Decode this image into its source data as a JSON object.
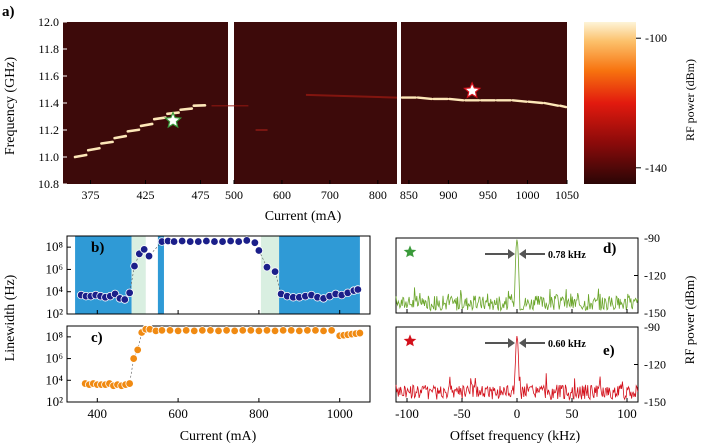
{
  "panel_labels": {
    "a": "a)",
    "b": "b)",
    "c": "c)",
    "d": "d)",
    "e": "e)"
  },
  "annotations": {
    "d_linewidth": "0.78 kHz",
    "e_linewidth": "0.60 kHz"
  },
  "colors": {
    "heatmap_bg": "#3d0a0a",
    "blue_region": "#2f9ad6",
    "green_region": "#d9efe1",
    "blue_points": "#1b1f8a",
    "orange_points": "#f08a12",
    "green_trace": "#6aa52a",
    "red_trace": "#d3101b",
    "star_green": "#3a9a3a",
    "star_red": "#d3101b"
  },
  "chart_data": [
    {
      "id": "a",
      "type": "heatmap",
      "title": "",
      "xlabel": "Current (mA)",
      "ylabel": "Frequency (GHz)",
      "ylim": [
        10.8,
        12.0
      ],
      "yticks": [
        "10.8",
        "11.0",
        "11.2",
        "11.4",
        "11.6",
        "11.8",
        "12.0"
      ],
      "segments": [
        {
          "xlim": [
            350,
            500
          ],
          "xticks": [
            "375",
            "425",
            "475"
          ]
        },
        {
          "xlim": [
            500,
            840
          ],
          "xticks": [
            "500",
            "600",
            "700",
            "800"
          ]
        },
        {
          "xlim": [
            840,
            1050
          ],
          "xticks": [
            "850",
            "900",
            "950",
            "1000",
            "1050"
          ]
        }
      ],
      "colorbar": {
        "label": "RF power (dBm)",
        "ticks": [
          "-100",
          "-140"
        ],
        "range": [
          -145,
          -95
        ]
      },
      "trace1": {
        "x": [
          360,
          372,
          384,
          396,
          408,
          420,
          432,
          444,
          456,
          468,
          480
        ],
        "y": [
          11.0,
          11.05,
          11.1,
          11.14,
          11.19,
          11.23,
          11.28,
          11.32,
          11.35,
          11.38,
          11.39
        ]
      },
      "trace2": {
        "x": [
          840,
          860,
          880,
          900,
          920,
          940,
          960,
          980,
          1000,
          1020,
          1040,
          1050
        ],
        "y": [
          11.44,
          11.44,
          11.43,
          11.43,
          11.42,
          11.42,
          11.42,
          11.42,
          11.41,
          11.4,
          11.38,
          11.37
        ]
      },
      "stars": [
        {
          "x": 450,
          "y": 11.27,
          "color": "green"
        },
        {
          "x": 930,
          "y": 11.49,
          "color": "red"
        }
      ]
    },
    {
      "id": "b",
      "type": "scatter",
      "xlabel": "",
      "ylabel": "Linewidth (Hz)",
      "xlim": [
        325,
        1075
      ],
      "ylim_log10": [
        2,
        9
      ],
      "yticks": [
        "10²",
        "10⁴",
        "10⁶",
        "10⁸"
      ],
      "regions": [
        {
          "x0": 345,
          "x1": 485,
          "color": "blue"
        },
        {
          "x0": 485,
          "x1": 520,
          "color": "green"
        },
        {
          "x0": 550,
          "x1": 565,
          "color": "blue"
        },
        {
          "x0": 805,
          "x1": 850,
          "color": "green"
        },
        {
          "x0": 850,
          "x1": 1050,
          "color": "blue"
        }
      ],
      "x": [
        360,
        372,
        384,
        396,
        408,
        420,
        432,
        444,
        456,
        468,
        480,
        492,
        504,
        516,
        528,
        560,
        575,
        590,
        610,
        630,
        650,
        670,
        690,
        710,
        730,
        750,
        770,
        790,
        800,
        820,
        840,
        855,
        870,
        885,
        900,
        915,
        930,
        945,
        960,
        975,
        990,
        1005,
        1020,
        1035,
        1045
      ],
      "y_log10": [
        3.7,
        3.6,
        3.6,
        3.7,
        3.6,
        3.5,
        3.6,
        3.8,
        3.4,
        3.3,
        3.9,
        6.3,
        7.4,
        7.8,
        7.2,
        8.5,
        8.55,
        8.5,
        8.55,
        8.5,
        8.5,
        8.55,
        8.5,
        8.5,
        8.55,
        8.5,
        8.6,
        8.4,
        7.7,
        6.2,
        5.8,
        3.8,
        3.6,
        3.5,
        3.5,
        3.6,
        3.7,
        3.5,
        3.4,
        3.6,
        3.8,
        3.7,
        3.9,
        4.1,
        4.2
      ]
    },
    {
      "id": "c",
      "type": "scatter",
      "xlabel": "Current (mA)",
      "ylabel": "Linewidth (Hz)",
      "xlim": [
        325,
        1075
      ],
      "ylim_log10": [
        2,
        9
      ],
      "yticks": [
        "10²",
        "10⁴",
        "10⁶",
        "10⁸"
      ],
      "xticks": [
        "400",
        "600",
        "800",
        "1000"
      ],
      "x": [
        370,
        380,
        390,
        400,
        410,
        420,
        430,
        440,
        450,
        460,
        470,
        480,
        490,
        500,
        510,
        520,
        530,
        545,
        560,
        580,
        600,
        620,
        640,
        660,
        680,
        700,
        720,
        740,
        760,
        780,
        800,
        820,
        840,
        860,
        880,
        900,
        920,
        940,
        960,
        980,
        1000,
        1010,
        1020,
        1030,
        1040,
        1050
      ],
      "y_log10": [
        3.7,
        3.6,
        3.7,
        3.6,
        3.6,
        3.6,
        3.7,
        3.5,
        3.6,
        3.5,
        3.6,
        3.7,
        6.0,
        6.8,
        8.4,
        8.7,
        8.7,
        8.55,
        8.6,
        8.6,
        8.55,
        8.6,
        8.55,
        8.6,
        8.6,
        8.55,
        8.6,
        8.55,
        8.6,
        8.6,
        8.55,
        8.6,
        8.55,
        8.6,
        8.6,
        8.55,
        8.6,
        8.6,
        8.55,
        8.6,
        8.1,
        8.15,
        8.2,
        8.25,
        8.3,
        8.35
      ]
    },
    {
      "id": "d",
      "type": "line",
      "xlabel": "",
      "ylabel": "RF power (dBm)",
      "xlim": [
        -110,
        110
      ],
      "ylim": [
        -150,
        -90
      ],
      "yticks": [
        "-90",
        "-120",
        "-150"
      ],
      "peak": {
        "x": 0,
        "y": -91
      },
      "noise_floor": -145
    },
    {
      "id": "e",
      "type": "line",
      "xlabel": "Offset frequency (kHz)",
      "ylabel": "RF power (dBm)",
      "xlim": [
        -110,
        110
      ],
      "ylim": [
        -150,
        -90
      ],
      "yticks": [
        "-90",
        "-120",
        "-150"
      ],
      "xticks": [
        "-100",
        "-50",
        "0",
        "50",
        "100"
      ],
      "peak": {
        "x": 0,
        "y": -97
      },
      "noise_floor": -145
    }
  ]
}
